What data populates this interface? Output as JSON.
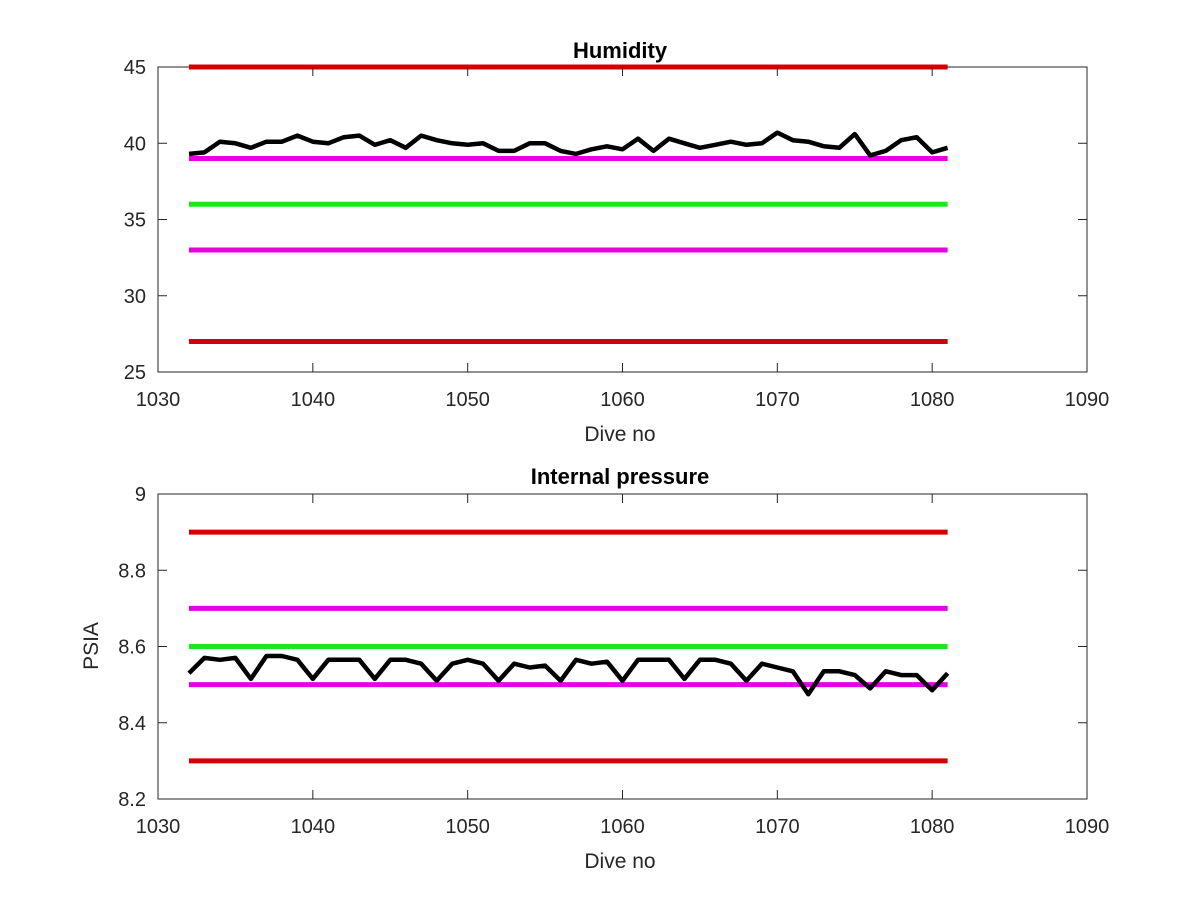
{
  "chart_data": [
    {
      "type": "line",
      "title": "Humidity",
      "xlabel": "Dive no",
      "ylabel": "",
      "xlim": [
        1030,
        1090
      ],
      "ylim": [
        25,
        45
      ],
      "xticks": [
        1030,
        1040,
        1050,
        1060,
        1070,
        1080,
        1090
      ],
      "yticks": [
        25,
        30,
        35,
        40,
        45
      ],
      "xtick_labels": [
        "1030",
        "1040",
        "1050",
        "1060",
        "1070",
        "1080",
        "1090"
      ],
      "ytick_labels": [
        "25",
        "30",
        "35",
        "40",
        "45"
      ],
      "grid": false,
      "legend": "none",
      "series": [
        {
          "color": "#000000",
          "x": [
            1032,
            1033,
            1034,
            1035,
            1036,
            1037,
            1038,
            1039,
            1040,
            1041,
            1042,
            1043,
            1044,
            1045,
            1046,
            1047,
            1048,
            1049,
            1050,
            1051,
            1052,
            1053,
            1054,
            1055,
            1056,
            1057,
            1058,
            1059,
            1060,
            1061,
            1062,
            1063,
            1064,
            1065,
            1066,
            1067,
            1068,
            1069,
            1070,
            1071,
            1072,
            1073,
            1074,
            1075,
            1076,
            1077,
            1078,
            1079,
            1080,
            1081
          ],
          "values": [
            39.3,
            39.4,
            40.1,
            40.0,
            39.7,
            40.1,
            40.1,
            40.5,
            40.1,
            40.0,
            40.4,
            40.5,
            39.9,
            40.2,
            39.7,
            40.5,
            40.2,
            40.0,
            39.9,
            40.0,
            39.5,
            39.5,
            40.0,
            40.0,
            39.5,
            39.3,
            39.6,
            39.8,
            39.6,
            40.3,
            39.5,
            40.3,
            40.0,
            39.7,
            39.9,
            40.1,
            39.9,
            40.0,
            40.7,
            40.2,
            40.1,
            39.8,
            39.7,
            40.6,
            39.2,
            39.5,
            40.2,
            40.4,
            39.4,
            39.7
          ]
        }
      ],
      "hlines": [
        {
          "y": 45,
          "x": [
            1032,
            1081
          ],
          "color": "#d40000"
        },
        {
          "y": 39,
          "x": [
            1032,
            1081
          ],
          "color": "#e600e6"
        },
        {
          "y": 36,
          "x": [
            1032,
            1081
          ],
          "color": "#1ee61e"
        },
        {
          "y": 33,
          "x": [
            1032,
            1081
          ],
          "color": "#e600e6"
        },
        {
          "y": 27,
          "x": [
            1032,
            1081
          ],
          "color": "#d40000"
        }
      ]
    },
    {
      "type": "line",
      "title": "Internal pressure",
      "xlabel": "Dive no",
      "ylabel": "PSIA",
      "xlim": [
        1030,
        1090
      ],
      "ylim": [
        8.2,
        9.0
      ],
      "xticks": [
        1030,
        1040,
        1050,
        1060,
        1070,
        1080,
        1090
      ],
      "yticks": [
        8.2,
        8.4,
        8.6,
        8.8,
        9.0
      ],
      "xtick_labels": [
        "1030",
        "1040",
        "1050",
        "1060",
        "1070",
        "1080",
        "1090"
      ],
      "ytick_labels": [
        "8.2",
        "8.4",
        "8.6",
        "8.8",
        "9"
      ],
      "grid": false,
      "legend": "none",
      "series": [
        {
          "color": "#000000",
          "x": [
            1032,
            1033,
            1034,
            1035,
            1036,
            1037,
            1038,
            1039,
            1040,
            1041,
            1042,
            1043,
            1044,
            1045,
            1046,
            1047,
            1048,
            1049,
            1050,
            1051,
            1052,
            1053,
            1054,
            1055,
            1056,
            1057,
            1058,
            1059,
            1060,
            1061,
            1062,
            1063,
            1064,
            1065,
            1066,
            1067,
            1068,
            1069,
            1070,
            1071,
            1072,
            1073,
            1074,
            1075,
            1076,
            1077,
            1078,
            1079,
            1080,
            1081
          ],
          "values": [
            8.53,
            8.57,
            8.565,
            8.57,
            8.515,
            8.575,
            8.575,
            8.565,
            8.515,
            8.565,
            8.565,
            8.565,
            8.515,
            8.565,
            8.565,
            8.555,
            8.51,
            8.555,
            8.565,
            8.555,
            8.51,
            8.555,
            8.545,
            8.55,
            8.51,
            8.565,
            8.555,
            8.56,
            8.51,
            8.565,
            8.565,
            8.565,
            8.515,
            8.565,
            8.565,
            8.555,
            8.51,
            8.555,
            8.545,
            8.535,
            8.475,
            8.535,
            8.535,
            8.525,
            8.49,
            8.535,
            8.525,
            8.525,
            8.485,
            8.53
          ]
        }
      ],
      "hlines": [
        {
          "y": 8.9,
          "x": [
            1032,
            1081
          ],
          "color": "#d40000"
        },
        {
          "y": 8.7,
          "x": [
            1032,
            1081
          ],
          "color": "#e600e6"
        },
        {
          "y": 8.6,
          "x": [
            1032,
            1081
          ],
          "color": "#1ee61e"
        },
        {
          "y": 8.5,
          "x": [
            1032,
            1081
          ],
          "color": "#e600e6"
        },
        {
          "y": 8.3,
          "x": [
            1032,
            1081
          ],
          "color": "#d40000"
        }
      ]
    }
  ]
}
